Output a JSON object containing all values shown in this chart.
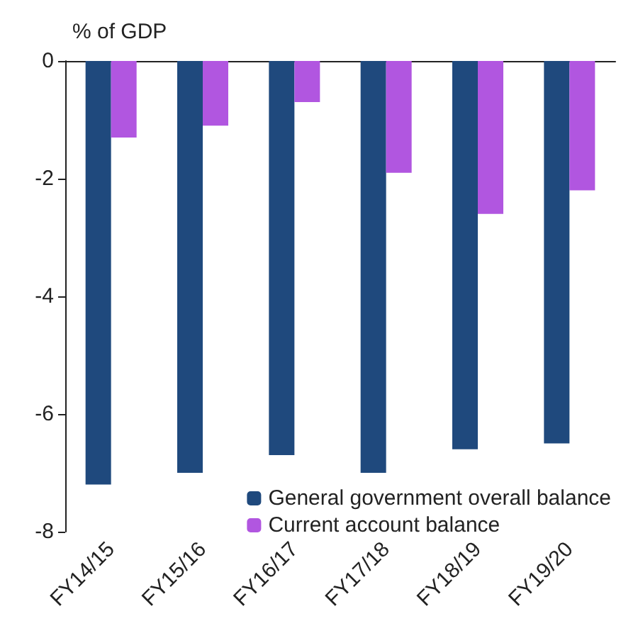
{
  "chart_data": {
    "type": "bar",
    "ylabel": "% of GDP",
    "categories": [
      "FY14/15",
      "FY15/16",
      "FY16/17",
      "FY17/18",
      "FY18/19",
      "FY19/20"
    ],
    "series": [
      {
        "name": "General government overall balance",
        "color": "#1f497d",
        "values": [
          -7.2,
          -7.0,
          -6.7,
          -7.0,
          -6.6,
          -6.5
        ]
      },
      {
        "name": "Current account balance",
        "color": "#b156e0",
        "values": [
          -1.3,
          -1.1,
          -0.7,
          -1.9,
          -2.6,
          -2.2
        ]
      }
    ],
    "ylim": [
      -8,
      0
    ],
    "yticks": [
      -8,
      -6,
      -4,
      -2,
      0
    ],
    "grid": false,
    "legend": "bottom right"
  }
}
